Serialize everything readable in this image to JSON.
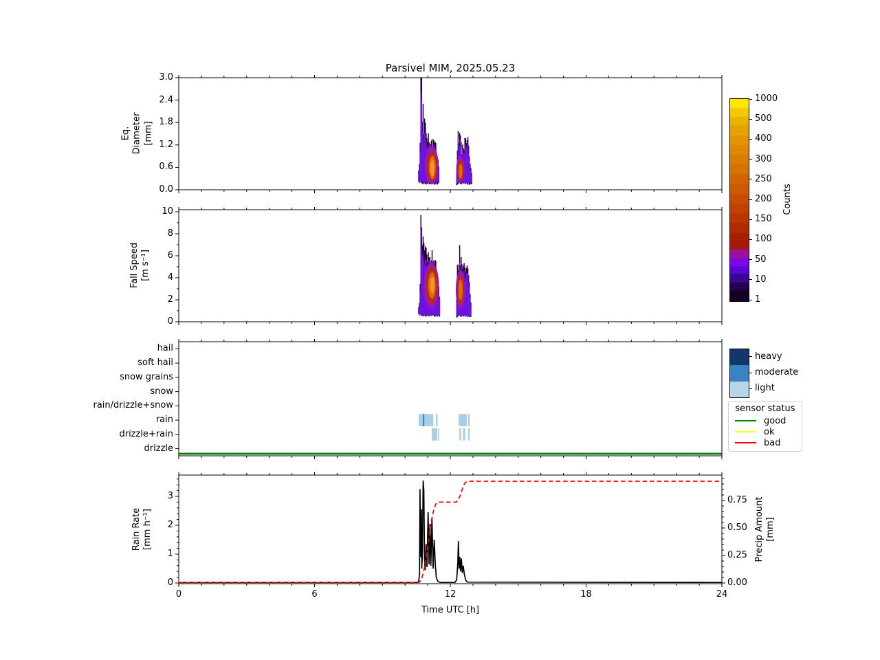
{
  "title": "Parsivel MIM, 2025.05.23",
  "xaxis": {
    "label": "Time UTC [h]",
    "tick_labels": [
      "0",
      "6",
      "12",
      "18",
      "24"
    ],
    "tick_hours": [
      0,
      6,
      12,
      18,
      24
    ],
    "range_h": [
      0,
      24
    ]
  },
  "panels": {
    "diameter": {
      "ylabel": "Eq.\nDiameter\n[mm]",
      "ytick_labels": [
        "0.0",
        "0.6",
        "1.2",
        "1.8",
        "2.4",
        "3.0"
      ],
      "ytick_vals": [
        0,
        0.6,
        1.2,
        1.8,
        2.4,
        3.0
      ],
      "ylim": [
        0,
        3.0
      ]
    },
    "fallspeed": {
      "ylabel": "Fall Speed\n[m s⁻¹]",
      "ytick_labels": [
        "0",
        "2",
        "4",
        "6",
        "8",
        "10"
      ],
      "ytick_vals": [
        0,
        2,
        4,
        6,
        8,
        10
      ],
      "yminor_vals": [
        1,
        3,
        5,
        7,
        9
      ],
      "ylim": [
        0,
        10.2
      ]
    },
    "types": {
      "categories": [
        "hail",
        "soft hail",
        "snow grains",
        "snow",
        "rain/drizzle+snow",
        "rain",
        "drizzle+rain",
        "drizzle"
      ]
    },
    "rainrate": {
      "ylabel": "Rain Rate\n[mm h⁻¹]",
      "ytick_labels": [
        "0",
        "1",
        "2",
        "3"
      ],
      "ytick_vals": [
        0,
        1,
        2,
        3
      ],
      "right_ylabel": "Precip Amount\n[mm]",
      "right_tick_labels": [
        "0.00",
        "0.25",
        "0.50",
        "0.75"
      ],
      "right_tick_vals": [
        0,
        0.25,
        0.5,
        0.75
      ]
    }
  },
  "colorbar": {
    "label": "Counts",
    "tick_labels_top_to_bottom": [
      "1000",
      "500",
      "400",
      "300",
      "250",
      "200",
      "150",
      "100",
      "50",
      "10",
      "1"
    ],
    "bands_top_to_bottom": [
      [
        "#ffe800",
        0.045
      ],
      [
        "#f4c903",
        0.045
      ],
      [
        "#ebb103",
        0.045
      ],
      [
        "#e5a203",
        0.05
      ],
      [
        "#e29503",
        0.05
      ],
      [
        "#de8903",
        0.05
      ],
      [
        "#da7d03",
        0.05
      ],
      [
        "#d67103",
        0.05
      ],
      [
        "#d26503",
        0.05
      ],
      [
        "#cd5903",
        0.05
      ],
      [
        "#c74d03",
        0.05
      ],
      [
        "#c04102",
        0.05
      ],
      [
        "#b83602",
        0.05
      ],
      [
        "#b02b02",
        0.05
      ],
      [
        "#a72004",
        0.045
      ],
      [
        "#a4190e",
        0.04
      ],
      [
        "#9c0e9e",
        0.045
      ],
      [
        "#7808e8",
        0.045
      ],
      [
        "#5a05d5",
        0.035
      ],
      [
        "#3d0392",
        0.045
      ],
      [
        "#260150",
        0.04
      ],
      [
        "#150122",
        0.055
      ]
    ]
  },
  "type_legend": {
    "entries": [
      {
        "label": "heavy",
        "color": "#12386b"
      },
      {
        "label": "moderate",
        "color": "#3a82c4"
      },
      {
        "label": "light",
        "color": "#b8d4e8"
      }
    ]
  },
  "sensor_legend": {
    "title": "sensor status",
    "entries": [
      {
        "label": "good",
        "color": "#008000"
      },
      {
        "label": "ok",
        "color": "#ffff00"
      },
      {
        "label": "bad",
        "color": "#ff0000"
      }
    ]
  },
  "chart_data": {
    "type": [
      "heatmap",
      "heatmap",
      "categorical-timeline",
      "line"
    ],
    "time_range_h": [
      0,
      24
    ],
    "counts_scale": [
      1,
      10,
      50,
      100,
      150,
      200,
      250,
      300,
      400,
      500,
      1000
    ],
    "heatmap_layer_colors": {
      "dark": "#26032f",
      "violet": "#6d14de",
      "magenta": "#9c15b8",
      "red": "#bb2e04",
      "orange": "#dd6b10",
      "bright": "#f29430"
    },
    "diameter_heatmap": {
      "ylim": [
        0,
        3.0
      ],
      "blobs": [
        {
          "x_range": [
            10.6,
            11.52
          ],
          "base": 0.18,
          "top_envelope": [
            [
              10.6,
              0.5
            ],
            [
              10.66,
              0.9
            ],
            [
              10.7,
              3.0
            ],
            [
              10.745,
              3.0
            ],
            [
              10.77,
              1.5
            ],
            [
              10.8,
              2.2
            ],
            [
              10.83,
              1.4
            ],
            [
              10.87,
              1.9
            ],
            [
              10.92,
              1.5
            ],
            [
              10.98,
              1.3
            ],
            [
              11.04,
              1.45
            ],
            [
              11.1,
              1.15
            ],
            [
              11.16,
              1.4
            ],
            [
              11.22,
              1.2
            ],
            [
              11.28,
              1.35
            ],
            [
              11.34,
              1.3
            ],
            [
              11.4,
              0.95
            ],
            [
              11.46,
              0.8
            ],
            [
              11.52,
              0.45
            ]
          ],
          "cores": [
            {
              "layer": "magenta",
              "cx": 11.17,
              "cy": 0.66,
              "rx": 0.3,
              "ry": 0.52
            },
            {
              "layer": "red",
              "cx": 11.19,
              "cy": 0.62,
              "rx": 0.22,
              "ry": 0.4
            },
            {
              "layer": "orange",
              "cx": 11.205,
              "cy": 0.6,
              "rx": 0.15,
              "ry": 0.31
            },
            {
              "layer": "bright",
              "cx": 11.21,
              "cy": 0.58,
              "rx": 0.085,
              "ry": 0.22
            }
          ]
        },
        {
          "x_range": [
            12.28,
            12.95
          ],
          "base": 0.16,
          "top_envelope": [
            [
              12.28,
              0.45
            ],
            [
              12.32,
              1.1
            ],
            [
              12.35,
              1.75
            ],
            [
              12.39,
              1.1
            ],
            [
              12.43,
              1.7
            ],
            [
              12.47,
              1.25
            ],
            [
              12.51,
              1.0
            ],
            [
              12.55,
              1.3
            ],
            [
              12.6,
              0.95
            ],
            [
              12.66,
              1.45
            ],
            [
              12.72,
              1.25
            ],
            [
              12.78,
              1.4
            ],
            [
              12.84,
              0.85
            ],
            [
              12.9,
              0.6
            ],
            [
              12.95,
              0.4
            ]
          ],
          "cores": [
            {
              "layer": "magenta",
              "cx": 12.45,
              "cy": 0.55,
              "rx": 0.19,
              "ry": 0.36
            },
            {
              "layer": "red",
              "cx": 12.46,
              "cy": 0.52,
              "rx": 0.13,
              "ry": 0.28
            },
            {
              "layer": "orange",
              "cx": 12.455,
              "cy": 0.5,
              "rx": 0.08,
              "ry": 0.2
            }
          ]
        }
      ]
    },
    "fallspeed_heatmap": {
      "ylim": [
        0,
        10
      ],
      "blobs": [
        {
          "x_range": [
            10.6,
            11.55
          ],
          "base": 0.6,
          "top_envelope": [
            [
              10.6,
              1.3
            ],
            [
              10.66,
              2.2
            ],
            [
              10.7,
              9.7
            ],
            [
              10.73,
              8.3
            ],
            [
              10.77,
              6.7
            ],
            [
              10.81,
              7.5
            ],
            [
              10.85,
              6.1
            ],
            [
              10.92,
              6.6
            ],
            [
              10.99,
              5.6
            ],
            [
              11.06,
              6.2
            ],
            [
              11.12,
              5.2
            ],
            [
              11.18,
              6.3
            ],
            [
              11.25,
              5.3
            ],
            [
              11.32,
              5.8
            ],
            [
              11.4,
              4.7
            ],
            [
              11.47,
              3.7
            ],
            [
              11.55,
              1.8
            ]
          ],
          "cores": [
            {
              "layer": "magenta",
              "cx": 11.16,
              "cy": 3.3,
              "rx": 0.34,
              "ry": 2.1
            },
            {
              "layer": "red",
              "cx": 11.18,
              "cy": 3.3,
              "rx": 0.25,
              "ry": 1.65
            },
            {
              "layer": "orange",
              "cx": 11.19,
              "cy": 3.3,
              "rx": 0.165,
              "ry": 1.2
            },
            {
              "layer": "bright",
              "cx": 11.2,
              "cy": 3.35,
              "rx": 0.09,
              "ry": 0.75
            }
          ]
        },
        {
          "x_range": [
            12.28,
            12.92
          ],
          "base": 0.5,
          "top_envelope": [
            [
              12.28,
              2.0
            ],
            [
              12.32,
              5.5
            ],
            [
              12.36,
              4.6
            ],
            [
              12.41,
              6.6
            ],
            [
              12.45,
              5.2
            ],
            [
              12.5,
              5.8
            ],
            [
              12.55,
              4.9
            ],
            [
              12.6,
              5.3
            ],
            [
              12.66,
              4.4
            ],
            [
              12.72,
              5.2
            ],
            [
              12.78,
              4.7
            ],
            [
              12.84,
              3.4
            ],
            [
              12.92,
              1.4
            ]
          ],
          "cores": [
            {
              "layer": "magenta",
              "cx": 12.45,
              "cy": 2.9,
              "rx": 0.21,
              "ry": 1.75
            },
            {
              "layer": "red",
              "cx": 12.46,
              "cy": 2.9,
              "rx": 0.14,
              "ry": 1.35
            },
            {
              "layer": "orange",
              "cx": 12.455,
              "cy": 2.9,
              "rx": 0.09,
              "ry": 0.95
            }
          ]
        }
      ]
    },
    "precip_types": {
      "intensity_colors": {
        "light": "#abcee4",
        "moderate": "#3579b8",
        "heavy": "#12386b"
      },
      "bars": {
        "rain": [
          {
            "start": 10.6,
            "end": 11.25,
            "intensity": "light"
          },
          {
            "start": 10.79,
            "end": 10.85,
            "intensity": "moderate"
          },
          {
            "start": 11.36,
            "end": 11.44,
            "intensity": "light"
          },
          {
            "start": 12.37,
            "end": 12.74,
            "intensity": "light"
          },
          {
            "start": 12.79,
            "end": 12.86,
            "intensity": "light"
          }
        ],
        "drizzle+rain": [
          {
            "start": 11.18,
            "end": 11.42,
            "intensity": "light"
          },
          {
            "start": 11.46,
            "end": 11.51,
            "intensity": "light"
          },
          {
            "start": 12.4,
            "end": 12.47,
            "intensity": "light"
          },
          {
            "start": 12.56,
            "end": 12.66,
            "intensity": "light"
          },
          {
            "start": 12.79,
            "end": 12.86,
            "intensity": "light"
          }
        ]
      }
    },
    "sensor_status": {
      "value": "good",
      "color": "#007e00",
      "x_range": [
        0,
        24
      ]
    },
    "rain_rate": {
      "units": "mm h⁻¹",
      "color": "#000000",
      "ylim": [
        0,
        3.7
      ],
      "points": [
        [
          0,
          0.02
        ],
        [
          10.5,
          0.02
        ],
        [
          10.6,
          0.04
        ],
        [
          10.64,
          0.3
        ],
        [
          10.66,
          3.25
        ],
        [
          10.68,
          1.6
        ],
        [
          10.7,
          0.9
        ],
        [
          10.72,
          2.55
        ],
        [
          10.74,
          0.5
        ],
        [
          10.77,
          1.1
        ],
        [
          10.8,
          3.55
        ],
        [
          10.83,
          3.2
        ],
        [
          10.86,
          0.8
        ],
        [
          10.89,
          0.45
        ],
        [
          10.93,
          1.35
        ],
        [
          10.97,
          0.55
        ],
        [
          11.02,
          2.45
        ],
        [
          11.06,
          0.65
        ],
        [
          11.1,
          2.05
        ],
        [
          11.14,
          0.6
        ],
        [
          11.19,
          2.25
        ],
        [
          11.24,
          0.5
        ],
        [
          11.29,
          1.5
        ],
        [
          11.34,
          0.6
        ],
        [
          11.38,
          0.2
        ],
        [
          11.45,
          0.05
        ],
        [
          11.55,
          0.02
        ],
        [
          12.2,
          0.02
        ],
        [
          12.28,
          0.1
        ],
        [
          12.33,
          0.7
        ],
        [
          12.36,
          1.45
        ],
        [
          12.39,
          0.5
        ],
        [
          12.42,
          0.9
        ],
        [
          12.45,
          0.4
        ],
        [
          12.49,
          0.85
        ],
        [
          12.53,
          0.35
        ],
        [
          12.57,
          0.6
        ],
        [
          12.62,
          0.3
        ],
        [
          12.68,
          0.1
        ],
        [
          12.75,
          0.03
        ],
        [
          24,
          0.02
        ]
      ]
    },
    "precip_amount": {
      "units": "mm",
      "color": "#ff0000",
      "style": "dashed",
      "ylim": [
        0,
        0.98
      ],
      "points": [
        [
          0,
          0.004
        ],
        [
          10.55,
          0.004
        ],
        [
          10.65,
          0.01
        ],
        [
          10.75,
          0.05
        ],
        [
          10.85,
          0.13
        ],
        [
          10.95,
          0.25
        ],
        [
          11.05,
          0.4
        ],
        [
          11.15,
          0.55
        ],
        [
          11.25,
          0.65
        ],
        [
          11.35,
          0.715
        ],
        [
          11.45,
          0.735
        ],
        [
          12.25,
          0.735
        ],
        [
          12.35,
          0.755
        ],
        [
          12.45,
          0.8
        ],
        [
          12.55,
          0.865
        ],
        [
          12.65,
          0.91
        ],
        [
          12.75,
          0.925
        ],
        [
          24,
          0.925
        ]
      ]
    }
  }
}
